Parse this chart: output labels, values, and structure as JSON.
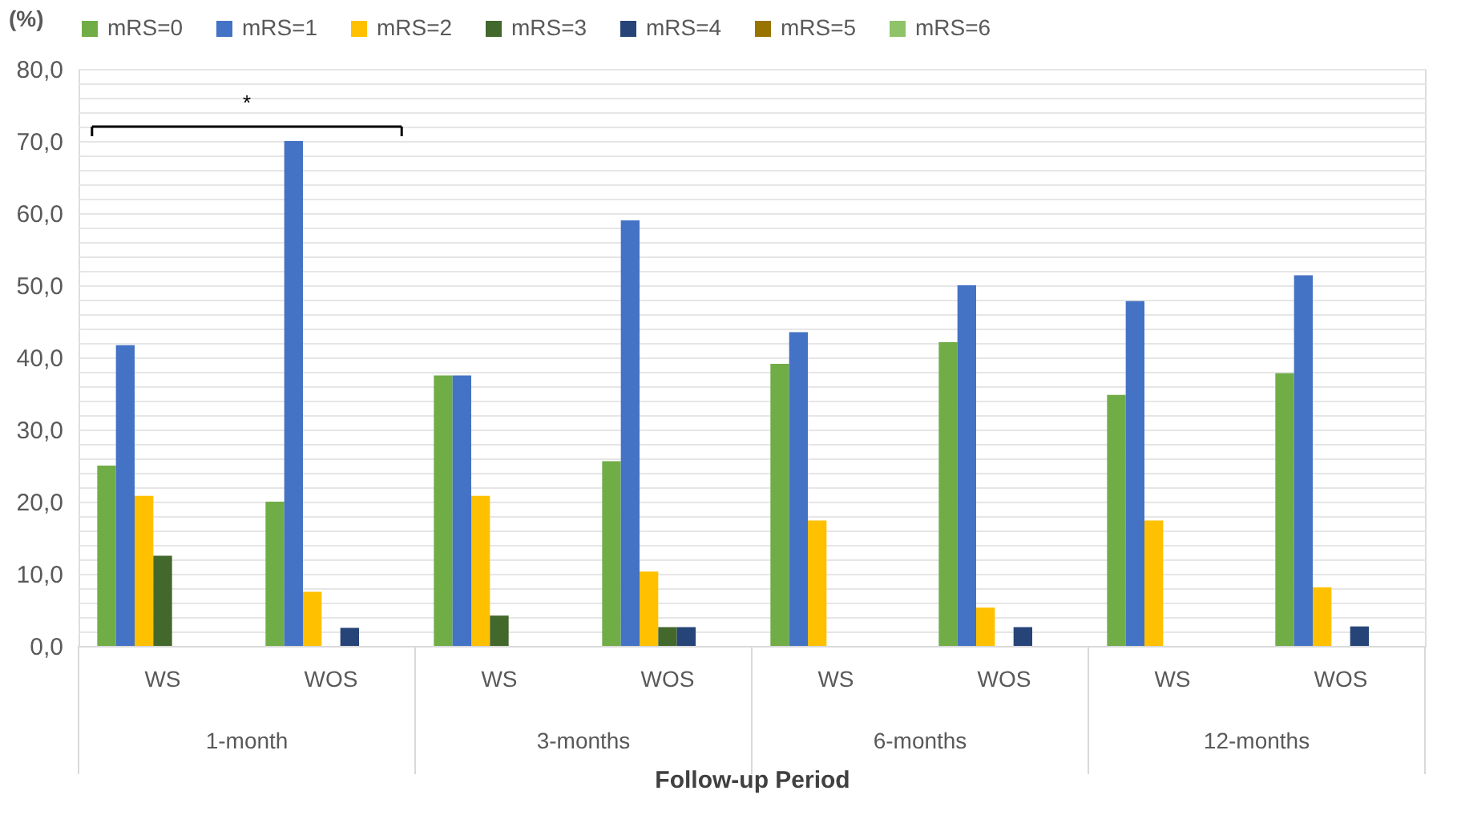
{
  "chart_data": {
    "type": "bar",
    "xlabel": "Follow-up Period",
    "ylabel": "(%)",
    "categories": [
      "WS",
      "WOS",
      "WS",
      "WOS",
      "WS",
      "WOS",
      "WS",
      "WOS"
    ],
    "series": [
      {
        "name": "mRS=0",
        "color": "#70ad47",
        "values": [
          25.0,
          20.0,
          37.5,
          25.6,
          39.1,
          42.1,
          34.8,
          37.8
        ]
      },
      {
        "name": "mRS=1",
        "color": "#4472c4",
        "values": [
          41.7,
          70.0,
          37.5,
          59.0,
          43.5,
          50.0,
          47.8,
          51.4
        ]
      },
      {
        "name": "mRS=2",
        "color": "#ffc000",
        "values": [
          20.8,
          7.5,
          20.8,
          10.3,
          17.4,
          5.3,
          17.4,
          8.1
        ]
      },
      {
        "name": "mRS=3",
        "color": "#43682b",
        "values": [
          12.5,
          0,
          4.2,
          2.6,
          0,
          0,
          0,
          0
        ]
      },
      {
        "name": "mRS=4",
        "color": "#264478",
        "values": [
          0,
          2.5,
          0,
          2.6,
          0,
          2.6,
          0,
          2.7
        ]
      },
      {
        "name": "mRS=5",
        "color": "#997300",
        "values": [
          0,
          0,
          0,
          0,
          0,
          0,
          0,
          0
        ]
      },
      {
        "name": "mRS=6",
        "color": "#8fc36a",
        "values": [
          0,
          0,
          0,
          0,
          0,
          0,
          0,
          0
        ]
      }
    ],
    "ylim": [
      0,
      80
    ],
    "yticks": [
      {
        "value": 0,
        "label": "0,0"
      },
      {
        "value": 2,
        "label": null
      },
      {
        "value": 4,
        "label": null
      },
      {
        "value": 6,
        "label": null
      },
      {
        "value": 8,
        "label": null
      },
      {
        "value": 10,
        "label": "10,0"
      },
      {
        "value": 12,
        "label": null
      },
      {
        "value": 14,
        "label": null
      },
      {
        "value": 16,
        "label": null
      },
      {
        "value": 18,
        "label": null
      },
      {
        "value": 20,
        "label": "20,0"
      },
      {
        "value": 22,
        "label": null
      },
      {
        "value": 24,
        "label": null
      },
      {
        "value": 26,
        "label": null
      },
      {
        "value": 28,
        "label": null
      },
      {
        "value": 30,
        "label": "30,0"
      },
      {
        "value": 32,
        "label": null
      },
      {
        "value": 34,
        "label": null
      },
      {
        "value": 36,
        "label": null
      },
      {
        "value": 38,
        "label": null
      },
      {
        "value": 40,
        "label": "40,0"
      },
      {
        "value": 42,
        "label": null
      },
      {
        "value": 44,
        "label": null
      },
      {
        "value": 46,
        "label": null
      },
      {
        "value": 48,
        "label": null
      },
      {
        "value": 50,
        "label": "50,0"
      },
      {
        "value": 52,
        "label": null
      },
      {
        "value": 54,
        "label": null
      },
      {
        "value": 56,
        "label": null
      },
      {
        "value": 58,
        "label": null
      },
      {
        "value": 60,
        "label": "60,0"
      },
      {
        "value": 62,
        "label": null
      },
      {
        "value": 64,
        "label": null
      },
      {
        "value": 66,
        "label": null
      },
      {
        "value": 68,
        "label": null
      },
      {
        "value": 70,
        "label": "70,0"
      },
      {
        "value": 72,
        "label": null
      },
      {
        "value": 74,
        "label": null
      },
      {
        "value": 76,
        "label": null
      },
      {
        "value": 78,
        "label": null
      },
      {
        "value": 80,
        "label": "80,0"
      }
    ],
    "grid": "y",
    "legend": "top",
    "annotations": [
      "*",
      "1-month",
      "3-months",
      "6-months",
      "12-months"
    ]
  }
}
